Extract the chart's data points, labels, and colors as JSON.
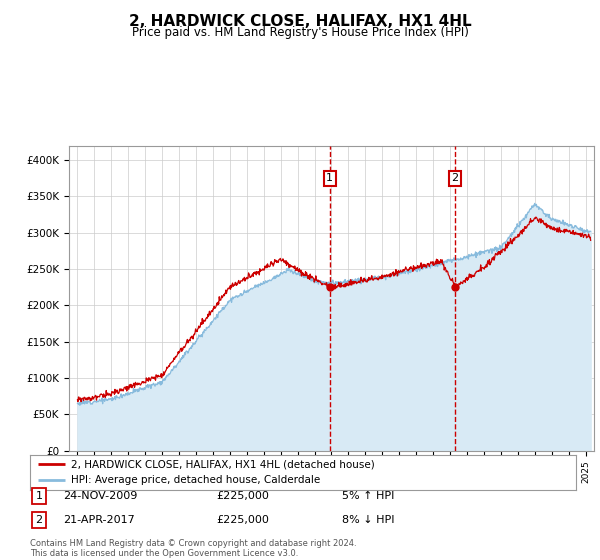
{
  "title": "2, HARDWICK CLOSE, HALIFAX, HX1 4HL",
  "subtitle": "Price paid vs. HM Land Registry's House Price Index (HPI)",
  "ylabel_ticks": [
    "£0",
    "£50K",
    "£100K",
    "£150K",
    "£200K",
    "£250K",
    "£300K",
    "£350K",
    "£400K"
  ],
  "ylim": [
    0,
    420000
  ],
  "xlim_start": 1994.5,
  "xlim_end": 2025.5,
  "sale1_x": 2009.9,
  "sale1_y": 225000,
  "sale1_label": "1",
  "sale1_date": "24-NOV-2009",
  "sale1_price": "£225,000",
  "sale1_hpi": "5% ↑ HPI",
  "sale2_x": 2017.3,
  "sale2_y": 225000,
  "sale2_label": "2",
  "sale2_date": "21-APR-2017",
  "sale2_price": "£225,000",
  "sale2_hpi": "8% ↓ HPI",
  "legend_line1": "2, HARDWICK CLOSE, HALIFAX, HX1 4HL (detached house)",
  "legend_line2": "HPI: Average price, detached house, Calderdale",
  "footer": "Contains HM Land Registry data © Crown copyright and database right 2024.\nThis data is licensed under the Open Government Licence v3.0.",
  "line_color_red": "#cc0000",
  "line_color_blue": "#88bbdd",
  "fill_color_blue": "#d8eaf5",
  "background_color": "#ffffff",
  "grid_color": "#cccccc",
  "vline_color": "#cc0000",
  "box_color": "#cc0000"
}
